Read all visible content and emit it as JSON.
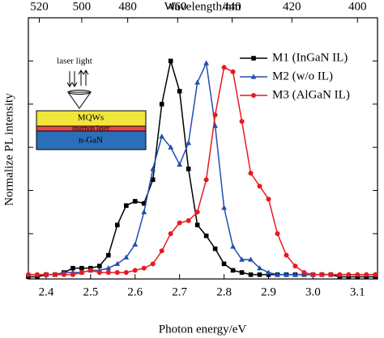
{
  "chart_data": {
    "type": "line",
    "xlabel": "Photon energy/eV",
    "ylabel": "Normalize PL intensity",
    "x2label": "Wavelength/nm",
    "xlim": [
      2.36,
      3.145
    ],
    "ylim": [
      -0.01,
      1.2
    ],
    "xticks": [
      2.4,
      2.5,
      2.6,
      2.7,
      2.8,
      2.9,
      {
        "value": 3,
        "label": "3.0"
      },
      3.1
    ],
    "yticks": [
      0,
      0.2,
      0.4,
      0.6,
      0.8,
      1
    ],
    "x2ticks": [
      520,
      500,
      480,
      460,
      440,
      420,
      400
    ],
    "legend": "upper right",
    "annotations": [
      "laser light",
      "MQWs",
      "insertion layer",
      "n-GaN"
    ],
    "x": [
      2.36,
      2.38,
      2.4,
      2.42,
      2.44,
      2.46,
      2.48,
      2.5,
      2.52,
      2.54,
      2.56,
      2.58,
      2.6,
      2.62,
      2.64,
      2.66,
      2.68,
      2.7,
      2.72,
      2.74,
      2.76,
      2.78,
      2.8,
      2.82,
      2.84,
      2.86,
      2.88,
      2.9,
      2.92,
      2.94,
      2.96,
      2.98,
      3.0,
      3.02,
      3.04,
      3.06,
      3.08,
      3.1,
      3.12,
      3.14
    ],
    "series": [
      {
        "name": "M1 (InGaN IL)",
        "color": "#000000",
        "marker": "square",
        "values": [
          0,
          0,
          0.01,
          0.01,
          0.02,
          0.04,
          0.04,
          0.04,
          0.05,
          0.1,
          0.24,
          0.33,
          0.35,
          0.34,
          0.45,
          0.8,
          1,
          0.86,
          0.5,
          0.24,
          0.19,
          0.13,
          0.06,
          0.03,
          0.02,
          0.01,
          0.01,
          0.01,
          0.01,
          0.01,
          0.01,
          0.01,
          0.01,
          0.01,
          0.01,
          0,
          0,
          0,
          0,
          0
        ]
      },
      {
        "name": "M2 (w/o IL)",
        "color": "#1f4fb0",
        "marker": "triangle",
        "values": [
          0.01,
          0.01,
          0.01,
          0.01,
          0.02,
          0.02,
          0.02,
          0.03,
          0.03,
          0.04,
          0.06,
          0.09,
          0.15,
          0.3,
          0.5,
          0.65,
          0.6,
          0.52,
          0.62,
          0.9,
          0.99,
          0.7,
          0.32,
          0.14,
          0.08,
          0.08,
          0.04,
          0.02,
          0.01,
          0.01,
          0.01,
          0.01,
          0.01,
          0.01,
          0.01,
          0.01,
          0.01,
          0.01,
          0.01,
          0.01
        ]
      },
      {
        "name": "M3 (AlGaN IL)",
        "color": "#e8191f",
        "marker": "circle",
        "values": [
          0.01,
          0.01,
          0.01,
          0.01,
          0.01,
          0.01,
          0.02,
          0.03,
          0.02,
          0.02,
          0.02,
          0.02,
          0.03,
          0.04,
          0.06,
          0.12,
          0.2,
          0.25,
          0.26,
          0.3,
          0.45,
          0.75,
          0.97,
          0.95,
          0.72,
          0.48,
          0.42,
          0.36,
          0.2,
          0.1,
          0.05,
          0.02,
          0.01,
          0.01,
          0.01,
          0.01,
          0.01,
          0.01,
          0.01,
          0.01
        ]
      }
    ]
  }
}
